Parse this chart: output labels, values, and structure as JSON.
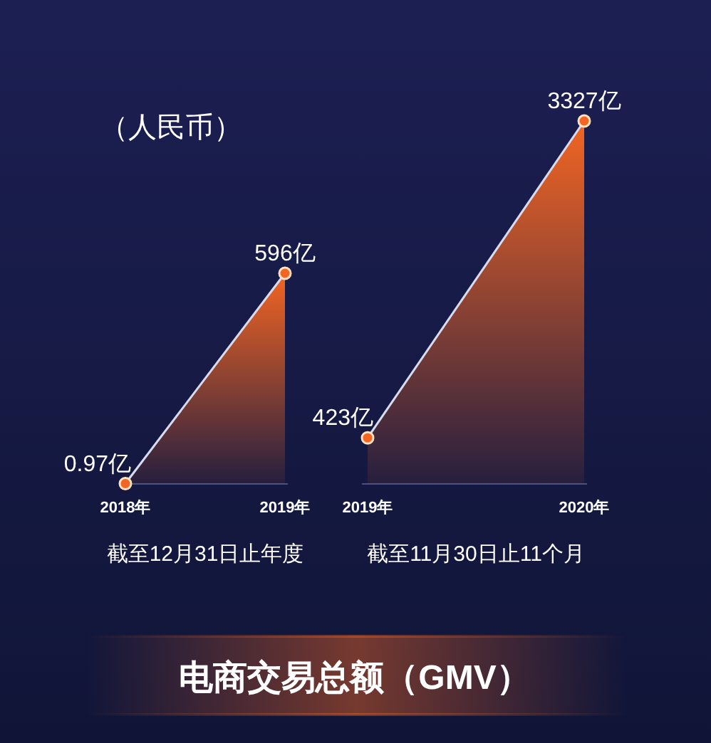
{
  "chart_data": [
    {
      "type": "area",
      "title": "电商交易总额（GMV）",
      "annotations": [
        "（人民币）"
      ],
      "xlabel": "截至12月31日止年度",
      "categories": [
        "2018年",
        "2019年"
      ],
      "series": [
        {
          "color": "#f26522",
          "values": [
            0.97,
            596
          ],
          "value_labels": [
            "0.97亿",
            "596亿"
          ]
        }
      ],
      "marker": "circle",
      "grid": false
    },
    {
      "type": "area",
      "xlabel": "截至11月30日止11个月",
      "categories": [
        "2019年",
        "2020年"
      ],
      "series": [
        {
          "color": "#f26522",
          "values": [
            423,
            3327
          ],
          "value_labels": [
            "423亿",
            "3327亿"
          ]
        }
      ],
      "marker": "circle",
      "grid": false
    }
  ]
}
